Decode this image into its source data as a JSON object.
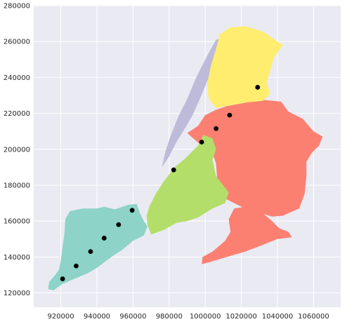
{
  "chart_data": {
    "type": "scatter",
    "title": "",
    "xlabel": "",
    "ylabel": "",
    "xlim": [
      905000,
      1075000
    ],
    "ylim": [
      112000,
      280000
    ],
    "grid": true,
    "x_ticks": [
      920000,
      940000,
      960000,
      980000,
      1000000,
      1020000,
      1040000,
      1060000
    ],
    "x_tick_labels": [
      "920000",
      "940000",
      "960000",
      "980000",
      "1000000",
      "1020000",
      "1040000",
      "1060000"
    ],
    "y_ticks": [
      120000,
      140000,
      160000,
      180000,
      200000,
      220000,
      240000,
      260000,
      280000
    ],
    "y_tick_labels": [
      "120000",
      "140000",
      "160000",
      "180000",
      "200000",
      "220000",
      "240000",
      "260000",
      "280000"
    ],
    "regions": [
      {
        "color": "#8dd3c7",
        "polygon": [
          [
            925000,
            165500
          ],
          [
            932000,
            167000
          ],
          [
            940000,
            167000
          ],
          [
            944000,
            168000
          ],
          [
            950000,
            166500
          ],
          [
            957000,
            169000
          ],
          [
            962000,
            169500
          ],
          [
            964000,
            164000
          ],
          [
            966000,
            160000
          ],
          [
            968000,
            157000
          ],
          [
            966000,
            152000
          ],
          [
            960000,
            149000
          ],
          [
            954000,
            144000
          ],
          [
            948000,
            140000
          ],
          [
            940000,
            134000
          ],
          [
            935000,
            131000
          ],
          [
            928000,
            128000
          ],
          [
            921000,
            125000
          ],
          [
            916000,
            121500
          ],
          [
            913000,
            122000
          ],
          [
            913500,
            126000
          ],
          [
            917000,
            130000
          ],
          [
            919000,
            133000
          ],
          [
            920000,
            138000
          ],
          [
            921000,
            146000
          ],
          [
            922000,
            153000
          ],
          [
            922500,
            161000
          ]
        ]
      },
      {
        "color": "#fb8072",
        "polygon": [
          [
            990000,
            209000
          ],
          [
            996000,
            213000
          ],
          [
            1000000,
            219000
          ],
          [
            1006000,
            222000
          ],
          [
            1012000,
            224000
          ],
          [
            1020000,
            225500
          ],
          [
            1028000,
            227000
          ],
          [
            1032000,
            227500
          ],
          [
            1042000,
            226500
          ],
          [
            1046000,
            221000
          ],
          [
            1054000,
            217000
          ],
          [
            1060000,
            210000
          ],
          [
            1065000,
            207000
          ],
          [
            1063000,
            202000
          ],
          [
            1059000,
            198000
          ],
          [
            1056000,
            193000
          ],
          [
            1056000,
            185000
          ],
          [
            1055000,
            175000
          ],
          [
            1052000,
            167000
          ],
          [
            1043000,
            163000
          ],
          [
            1037000,
            162500
          ],
          [
            1032000,
            164000
          ],
          [
            1022000,
            167000
          ],
          [
            1012000,
            172000
          ],
          [
            1005000,
            176000
          ],
          [
            1006500,
            185000
          ],
          [
            1006000,
            192000
          ],
          [
            1004000,
            198000
          ],
          [
            998000,
            202000
          ]
        ]
      },
      {
        "color": "#fb8072",
        "polygon": [
          [
            1013000,
            161000
          ],
          [
            1016000,
            167000
          ],
          [
            1022000,
            168000
          ],
          [
            1030000,
            166000
          ],
          [
            1037000,
            160000
          ],
          [
            1041000,
            156000
          ],
          [
            1046000,
            154000
          ],
          [
            1048000,
            151000
          ],
          [
            1040000,
            150000
          ],
          [
            1030000,
            146000
          ],
          [
            1022000,
            143000
          ],
          [
            1012000,
            140000
          ],
          [
            1002000,
            137000
          ],
          [
            998000,
            136000
          ],
          [
            998500,
            140000
          ],
          [
            1004000,
            143000
          ],
          [
            1011000,
            149000
          ],
          [
            1014000,
            154000
          ]
        ]
      },
      {
        "color": "#b3de69",
        "polygon": [
          [
            983000,
            190000
          ],
          [
            989000,
            195000
          ],
          [
            996000,
            202000
          ],
          [
            999000,
            208000
          ],
          [
            1004000,
            206000
          ],
          [
            1006000,
            200000
          ],
          [
            1004000,
            194000
          ],
          [
            1006000,
            185000
          ],
          [
            1013000,
            176000
          ],
          [
            1011000,
            170000
          ],
          [
            1004000,
            167000
          ],
          [
            996000,
            162000
          ],
          [
            990000,
            160000
          ],
          [
            984000,
            159000
          ],
          [
            977000,
            155000
          ],
          [
            970000,
            152500
          ],
          [
            968000,
            158000
          ],
          [
            967500,
            163000
          ],
          [
            969000,
            168000
          ],
          [
            972500,
            175000
          ],
          [
            977000,
            182000
          ]
        ]
      },
      {
        "color": "#bebada",
        "polygon": [
          [
            976000,
            190000
          ],
          [
            980000,
            196000
          ],
          [
            984000,
            204000
          ],
          [
            989000,
            212000
          ],
          [
            993000,
            219000
          ],
          [
            997000,
            228000
          ],
          [
            1002000,
            240000
          ],
          [
            1007000,
            254000
          ],
          [
            1009000,
            262000
          ],
          [
            1006000,
            261000
          ],
          [
            1001000,
            252000
          ],
          [
            995000,
            240000
          ],
          [
            990000,
            228000
          ],
          [
            985000,
            218000
          ],
          [
            981000,
            208000
          ],
          [
            978000,
            199000
          ]
        ]
      },
      {
        "color": "#ffed6f",
        "polygon": [
          [
            1008000,
            264000
          ],
          [
            1014000,
            268000
          ],
          [
            1022000,
            268500
          ],
          [
            1032000,
            265500
          ],
          [
            1037000,
            262000
          ],
          [
            1043000,
            258000
          ],
          [
            1038000,
            251000
          ],
          [
            1036000,
            244000
          ],
          [
            1034000,
            237000
          ],
          [
            1036000,
            231000
          ],
          [
            1032000,
            227000
          ],
          [
            1022000,
            226000
          ],
          [
            1012000,
            224000
          ],
          [
            1006000,
            223000
          ],
          [
            1002000,
            228000
          ],
          [
            1001000,
            236000
          ],
          [
            1003000,
            246000
          ],
          [
            1006000,
            256000
          ]
        ]
      }
    ],
    "points": [
      {
        "x": 921000,
        "y": 127800
      },
      {
        "x": 928500,
        "y": 135000
      },
      {
        "x": 936500,
        "y": 143000
      },
      {
        "x": 944000,
        "y": 150500
      },
      {
        "x": 952000,
        "y": 158000
      },
      {
        "x": 959500,
        "y": 166000
      },
      {
        "x": 982500,
        "y": 188500
      },
      {
        "x": 998000,
        "y": 204000
      },
      {
        "x": 1006000,
        "y": 211500
      },
      {
        "x": 1013500,
        "y": 219000
      },
      {
        "x": 1029000,
        "y": 234500
      }
    ],
    "colors": {
      "background": "#eaeaf2",
      "grid": "#ffffff",
      "point": "#000000"
    }
  }
}
